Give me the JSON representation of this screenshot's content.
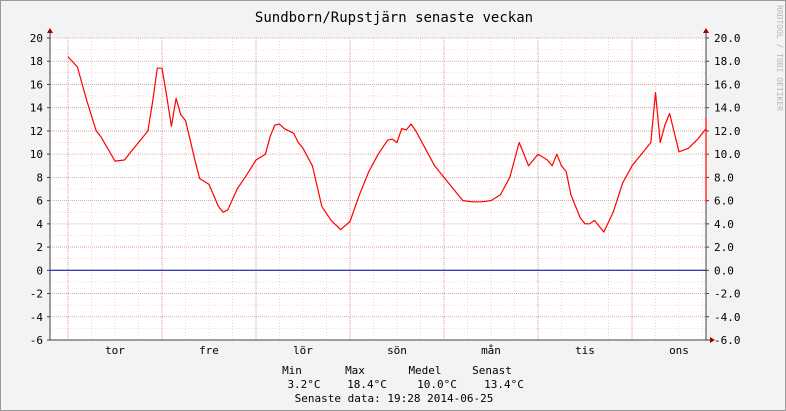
{
  "chart_data": {
    "type": "line",
    "title": "Sundborn/Rupstjärn senaste veckan",
    "watermark": "RRDTOOL / TOBI OETIKER",
    "x_labels": [
      "tor",
      "fre",
      "lör",
      "sön",
      "mån",
      "tis",
      "ons"
    ],
    "ylim": [
      -6,
      20
    ],
    "y_ticks_left": [
      "-6",
      "-4",
      "-2",
      "0",
      "2",
      "4",
      "6",
      "8",
      "10",
      "12",
      "14",
      "16",
      "18",
      "20"
    ],
    "y_ticks_right": [
      "-6.0",
      "-4.0",
      "-2.0",
      "0.0",
      "2.0",
      "4.0",
      "6.0",
      "8.0",
      "10.0",
      "12.0",
      "14.0",
      "16.0",
      "18.0",
      "20.0"
    ],
    "grid": true,
    "line_color": "#ff0000",
    "zero_line_color": "#0000b0",
    "series": [
      {
        "day_offset": [
          0,
          0.1,
          0.2,
          0.3,
          0.35,
          0.4,
          0.5,
          0.6,
          0.7,
          0.8,
          0.85,
          0.9,
          0.95,
          1.0,
          1.05,
          1.1,
          1.15,
          1.2,
          1.25,
          1.3,
          1.35,
          1.4,
          1.5,
          1.6,
          1.65,
          1.7,
          1.8,
          1.9,
          2.0,
          2.1,
          2.15,
          2.2,
          2.25,
          2.3,
          2.35,
          2.4,
          2.45,
          2.5,
          2.6,
          2.7,
          2.8,
          2.9,
          3.0,
          3.1,
          3.2,
          3.3,
          3.4,
          3.45,
          3.5,
          3.55,
          3.6,
          3.65,
          3.7,
          3.8,
          3.9,
          4.0,
          4.1,
          4.2,
          4.3,
          4.4,
          4.5,
          4.6,
          4.7,
          4.8,
          4.9,
          5.0,
          5.1,
          5.15,
          5.2,
          5.25,
          5.3,
          5.35,
          5.4,
          5.45,
          5.5,
          5.55,
          5.6,
          5.7,
          5.8,
          5.9,
          6.0,
          6.1,
          6.2,
          6.25,
          6.3,
          6.35,
          6.4,
          6.5,
          6.6,
          6.7,
          6.8,
          6.9,
          7.0,
          7.1,
          7.2,
          7.3,
          7.4,
          7.5,
          7.55,
          7.58
        ],
        "values": [
          18.4,
          17.5,
          14.6,
          12.0,
          11.5,
          10.8,
          9.4,
          9.5,
          10.5,
          11.5,
          12.0,
          14.5,
          17.4,
          17.4,
          15.0,
          12.4,
          14.8,
          13.4,
          12.9,
          11.2,
          9.5,
          7.9,
          7.4,
          5.5,
          5.0,
          5.2,
          7.0,
          8.2,
          9.5,
          10.0,
          11.5,
          12.5,
          12.6,
          12.2,
          12.0,
          11.8,
          11.0,
          10.5,
          9.0,
          5.5,
          4.3,
          3.5,
          4.2,
          6.5,
          8.5,
          10.0,
          11.2,
          11.3,
          11.0,
          12.2,
          12.1,
          12.6,
          12.0,
          10.5,
          9.0,
          8.0,
          7.0,
          6.0,
          5.9,
          5.9,
          6.0,
          6.5,
          8.0,
          11.0,
          9.0,
          10.0,
          9.5,
          9.0,
          10.0,
          9.0,
          8.5,
          6.5,
          5.5,
          4.5,
          4.0,
          4.0,
          4.3,
          3.3,
          5.0,
          7.5,
          9.0,
          10.0,
          11.0,
          15.3,
          11.0,
          12.5,
          13.5,
          10.2,
          10.5,
          11.3,
          12.2,
          10.5,
          8.0,
          6.5,
          6.0,
          5.8,
          6.5,
          9.0,
          11.0,
          13.2
        ]
      }
    ]
  },
  "legend": {
    "headers": [
      "Min",
      "Max",
      "Medel",
      "Senast"
    ],
    "values": [
      "3.2°C",
      "18.4°C",
      "10.0°C",
      "13.4°C"
    ],
    "footer": "Senaste data: 19:28 2014-06-25"
  }
}
